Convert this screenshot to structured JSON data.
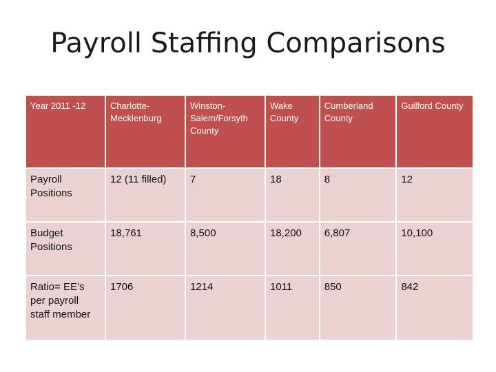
{
  "slide": {
    "title": "Payroll Staffing Comparisons"
  },
  "table": {
    "header": [
      "Year 2011 -12",
      "Charlotte-Mecklenburg",
      "Winston-Salem/Forsyth County",
      "Wake County",
      "Cumberland County",
      "Guilford County"
    ],
    "rows": [
      [
        "Payroll Positions",
        "12 (11 filled)",
        "7",
        "18",
        "8",
        "12"
      ],
      [
        "Budget Positions",
        "18,761",
        "8,500",
        "18,200",
        "6,807",
        "10,100"
      ],
      [
        "Ratio= EE’s per payroll staff member",
        "1706",
        "1214",
        "1011",
        "850",
        "842"
      ]
    ]
  },
  "colors": {
    "header_bg": "#c0504d",
    "row_bg": "#e9d2d1"
  }
}
